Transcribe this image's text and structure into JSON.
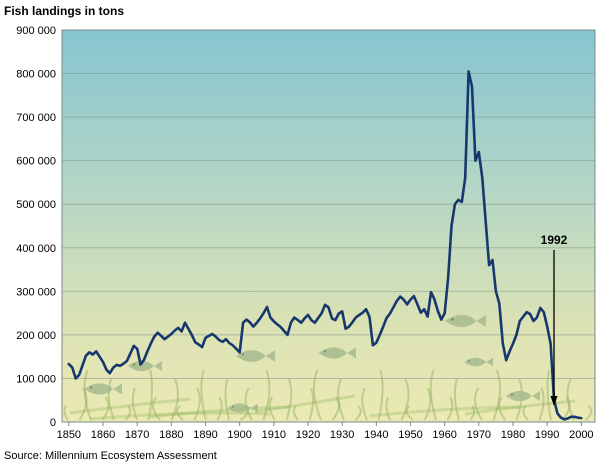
{
  "title": "Fish landings in tons",
  "source": "Source: Millennium Ecosystem Assessment",
  "colors": {
    "line": "#16386e",
    "bg_top": "#86c5d0",
    "bg_mid": "#b4d6c6",
    "bg_low": "#dbe2b4",
    "bg_bottom": "#eceab4",
    "grid": "#7f9894",
    "border": "#7a8888",
    "decor_fish": "#a3b88c",
    "decor_weed": "#8cae57"
  },
  "chart_data": {
    "type": "line",
    "title": "Fish landings in tons",
    "xlabel": "",
    "ylabel": "Fish landings in tons",
    "ylim": [
      0,
      900000
    ],
    "xmin": 1848,
    "xmax": 2004,
    "grid": true,
    "legend": "none",
    "ytick_values": [
      0,
      100000,
      200000,
      300000,
      400000,
      500000,
      600000,
      700000,
      800000,
      900000
    ],
    "ytick_labels": [
      "0",
      "100 000",
      "200 000",
      "300 000",
      "400 000",
      "500 000",
      "600 000",
      "700 000",
      "800 000",
      "900 000"
    ],
    "xticks": [
      1850,
      1860,
      1870,
      1880,
      1890,
      1900,
      1910,
      1920,
      1930,
      1940,
      1950,
      1960,
      1970,
      1980,
      1990,
      2000
    ],
    "annotation": {
      "label": "1992",
      "year": 1992
    },
    "series": [
      {
        "name": "Fish landings (tons)",
        "years": [
          1850,
          1851,
          1852,
          1853,
          1854,
          1855,
          1856,
          1857,
          1858,
          1859,
          1860,
          1861,
          1862,
          1863,
          1864,
          1865,
          1866,
          1867,
          1868,
          1869,
          1870,
          1871,
          1872,
          1873,
          1874,
          1875,
          1876,
          1877,
          1878,
          1879,
          1880,
          1881,
          1882,
          1883,
          1884,
          1885,
          1886,
          1887,
          1888,
          1889,
          1890,
          1891,
          1892,
          1893,
          1894,
          1895,
          1896,
          1897,
          1898,
          1899,
          1900,
          1901,
          1902,
          1903,
          1904,
          1905,
          1906,
          1907,
          1908,
          1909,
          1910,
          1911,
          1912,
          1913,
          1914,
          1915,
          1916,
          1917,
          1918,
          1919,
          1920,
          1921,
          1922,
          1923,
          1924,
          1925,
          1926,
          1927,
          1928,
          1929,
          1930,
          1931,
          1932,
          1933,
          1934,
          1935,
          1936,
          1937,
          1938,
          1939,
          1940,
          1941,
          1942,
          1943,
          1944,
          1945,
          1946,
          1947,
          1948,
          1949,
          1950,
          1951,
          1952,
          1953,
          1954,
          1955,
          1956,
          1957,
          1958,
          1959,
          1960,
          1961,
          1962,
          1963,
          1964,
          1965,
          1966,
          1967,
          1968,
          1969,
          1970,
          1971,
          1972,
          1973,
          1974,
          1975,
          1976,
          1977,
          1978,
          1979,
          1980,
          1981,
          1982,
          1983,
          1984,
          1985,
          1986,
          1987,
          1988,
          1989,
          1990,
          1991,
          1992,
          1993,
          1994,
          1995,
          1996,
          1997,
          1998,
          1999,
          2000
        ],
        "values": [
          133000,
          125000,
          100000,
          108000,
          130000,
          152000,
          160000,
          155000,
          162000,
          150000,
          138000,
          120000,
          112000,
          125000,
          131000,
          129000,
          134000,
          140000,
          157000,
          175000,
          168000,
          132000,
          143000,
          162000,
          180000,
          196000,
          205000,
          198000,
          190000,
          196000,
          202000,
          210000,
          216000,
          208000,
          228000,
          214000,
          200000,
          183000,
          178000,
          172000,
          193000,
          198000,
          202000,
          196000,
          188000,
          184000,
          190000,
          181000,
          176000,
          168000,
          160000,
          228000,
          235000,
          229000,
          219000,
          228000,
          238000,
          250000,
          264000,
          240000,
          231000,
          224000,
          218000,
          209000,
          200000,
          228000,
          240000,
          234000,
          228000,
          238000,
          246000,
          234000,
          228000,
          239000,
          250000,
          269000,
          263000,
          238000,
          234000,
          249000,
          254000,
          214000,
          219000,
          229000,
          240000,
          246000,
          251000,
          259000,
          241000,
          176000,
          182000,
          200000,
          219000,
          239000,
          249000,
          263000,
          278000,
          288000,
          281000,
          270000,
          281000,
          289000,
          271000,
          251000,
          259000,
          242000,
          298000,
          282000,
          255000,
          235000,
          250000,
          330000,
          450000,
          500000,
          510000,
          505000,
          560000,
          805000,
          770000,
          600000,
          620000,
          560000,
          460000,
          360000,
          372000,
          300000,
          272000,
          180000,
          142000,
          162000,
          180000,
          200000,
          232000,
          242000,
          252000,
          248000,
          232000,
          240000,
          262000,
          252000,
          219000,
          180000,
          52000,
          20000,
          10000,
          6000,
          8000,
          12000,
          12000,
          10000,
          9000
        ]
      }
    ]
  }
}
